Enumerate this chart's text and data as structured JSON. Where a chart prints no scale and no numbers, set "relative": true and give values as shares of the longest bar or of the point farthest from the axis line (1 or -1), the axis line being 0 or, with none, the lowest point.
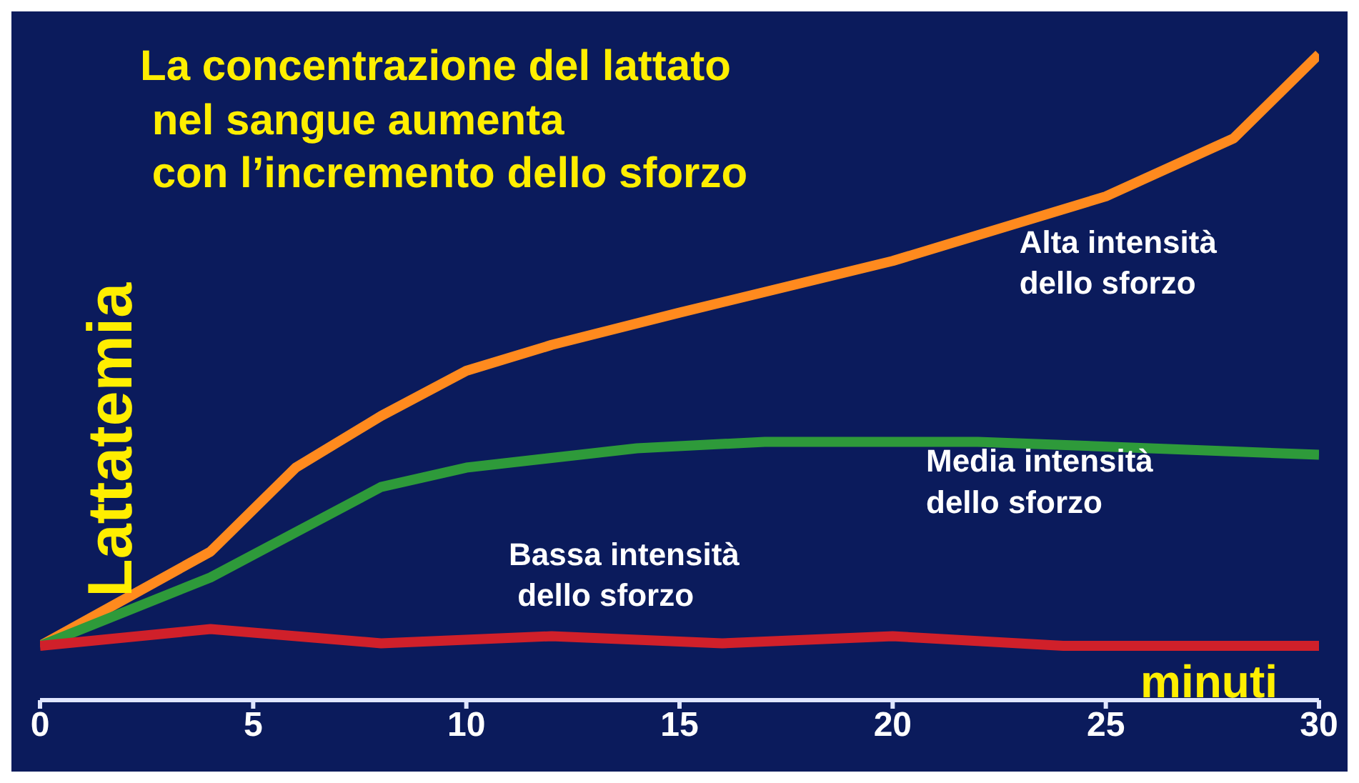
{
  "chart_data": {
    "type": "line",
    "relative": true,
    "title": "La concentrazione del lattato\n nel sangue aumenta\n con l’incremento dello sforzo",
    "xlabel": "minuti",
    "ylabel": "Lattatemia",
    "xlim": [
      0,
      30
    ],
    "xticks": [
      0,
      5,
      10,
      15,
      20,
      25,
      30
    ],
    "grid": false,
    "legend": false,
    "marker": "none",
    "line_style": "solid",
    "series": [
      {
        "name": "Alta intensità\ndello sforzo",
        "color": "#ff8a1e",
        "x": [
          0,
          4,
          6,
          8,
          10,
          12,
          15,
          20,
          25,
          28,
          30
        ],
        "values": [
          0.084,
          0.23,
          0.36,
          0.44,
          0.51,
          0.55,
          0.6,
          0.68,
          0.78,
          0.87,
          1
        ]
      },
      {
        "name": "Media intensità\ndello sforzo",
        "color": "#2e9a3a",
        "x": [
          0,
          4,
          8,
          10,
          14,
          17,
          22,
          30
        ],
        "values": [
          0.084,
          0.19,
          0.33,
          0.36,
          0.39,
          0.4,
          0.4,
          0.38
        ]
      },
      {
        "name": "Bassa intensità\n dello sforzo",
        "color": "#d0202a",
        "x": [
          0,
          4,
          8,
          12,
          16,
          20,
          24,
          30
        ],
        "values": [
          0.084,
          0.11,
          0.088,
          0.099,
          0.088,
          0.099,
          0.084,
          0.084
        ]
      }
    ]
  }
}
